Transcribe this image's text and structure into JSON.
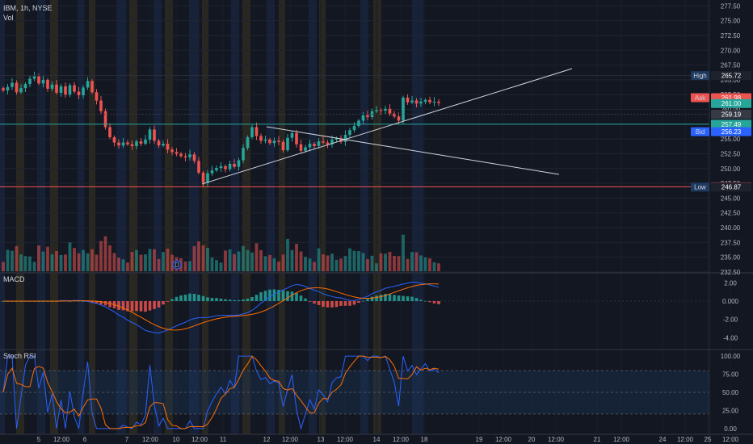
{
  "header": {
    "symbol_line": "IBM, 1h, NYSE",
    "vol_label": "Vol",
    "macd_label": "MACD",
    "stoch_label": "Stoch RSI"
  },
  "colors": {
    "background": "#131722",
    "up": "#26a69a",
    "down": "#ef5350",
    "session_premarket": "#3d3420",
    "session_afterhours": "#1a2a4a",
    "macd_line": "#2962ff",
    "signal_line": "#ff6d00",
    "stoch_band": "#1e3a5f",
    "support_line": "#ef5350",
    "resistance_line": "#26a69a"
  },
  "time_labels": [
    "5",
    "12:00",
    "6",
    "7",
    "12:00",
    "10",
    "12:00",
    "11",
    "12",
    "12:00",
    "13",
    "12:00",
    "14",
    "12:00",
    "18",
    "19",
    "12:00",
    "20",
    "12:00",
    "21",
    "12:00",
    "24",
    "12:00",
    "25",
    "12:00"
  ],
  "price_axis": [
    "277.50",
    "275.00",
    "272.50",
    "270.00",
    "267.50",
    "265.00",
    "262.50",
    "260.00",
    "257.50",
    "255.00",
    "252.50",
    "250.00",
    "247.50",
    "245.00",
    "242.50",
    "240.00",
    "237.50",
    "235.00",
    "232.50"
  ],
  "macd_axis": [
    "2.00",
    "0.000",
    "-2.00",
    "-4.00"
  ],
  "stoch_axis": [
    "100.00",
    "75.00",
    "50.00",
    "25.00",
    "0.00"
  ],
  "price_tags": {
    "high_label": "High",
    "high": "265.72",
    "ask_label": "Ask",
    "ask": "261.98",
    "last": "261.00",
    "prev": "259.19",
    "level_green": "257.49",
    "bid_label": "Bid",
    "bid": "256.23",
    "level_red": "246.91",
    "low_label": "Low",
    "low": "246.87"
  },
  "event_marker": "D",
  "chart_data": {
    "type": "candlestick",
    "interval": "1h",
    "price_range": [
      232.5,
      278.5
    ],
    "candles_close": [
      263.2,
      263.8,
      264.5,
      262.9,
      263.6,
      264.3,
      265.2,
      265.6,
      264.4,
      265.0,
      263.5,
      264.2,
      262.8,
      263.9,
      262.5,
      264.1,
      263.0,
      262.4,
      263.7,
      264.8,
      262.9,
      261.5,
      259.7,
      257.0,
      255.3,
      254.4,
      253.9,
      254.4,
      254.1,
      253.8,
      254.6,
      254.2,
      254.9,
      256.6,
      254.7,
      253.9,
      254.2,
      253.2,
      252.8,
      252.5,
      252.1,
      251.9,
      252.4,
      251.3,
      249.3,
      247.6,
      249.2,
      249.7,
      250.1,
      250.4,
      249.9,
      250.8,
      250.3,
      251.4,
      253.5,
      255.3,
      257.0,
      255.5,
      254.7,
      254.9,
      254.3,
      254.7,
      254.5,
      253.1,
      255.2,
      256.0,
      254.1,
      253.0,
      253.6,
      254.2,
      253.8,
      254.6,
      254.4,
      254.1,
      254.9,
      255.1,
      254.5,
      255.7,
      256.5,
      257.2,
      258.1,
      259.0,
      258.7,
      259.7,
      259.9,
      259.8,
      260.1,
      259.3,
      258.8,
      258.1,
      262.0,
      261.2,
      261.5,
      261.0,
      261.3,
      261.6,
      261.2,
      261.3,
      261.1
    ],
    "macd_range": [
      -5.2,
      3.0
    ],
    "stoch_range": [
      -8,
      108
    ],
    "stoch_bands": [
      20,
      80
    ],
    "levels": [
      265.72,
      261.98,
      261.0,
      259.19,
      257.49,
      256.23,
      246.91,
      246.87
    ]
  }
}
